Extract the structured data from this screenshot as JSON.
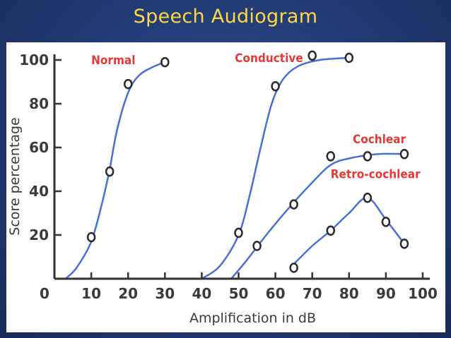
{
  "slide": {
    "title": "Speech Audiogram"
  },
  "chart_data": {
    "type": "line",
    "xlabel": "Amplification in dB",
    "ylabel": "Score percentage",
    "xlim": [
      0,
      100
    ],
    "ylim": [
      0,
      100
    ],
    "x_ticks": [
      0,
      10,
      20,
      30,
      40,
      50,
      60,
      70,
      80,
      90,
      100
    ],
    "y_ticks": [
      20,
      40,
      60,
      80,
      100
    ],
    "grid": false,
    "legend": "none",
    "line_color": "#4a6fd4",
    "point_color": "#2b2b2b",
    "label_color": "#e53935",
    "series": [
      {
        "name": "Normal",
        "points": [
          [
            10,
            19
          ],
          [
            15,
            49
          ],
          [
            20,
            89
          ],
          [
            30,
            99
          ]
        ],
        "curve": [
          [
            3,
            0
          ],
          [
            6,
            5
          ],
          [
            10,
            17
          ],
          [
            13,
            35
          ],
          [
            15,
            50
          ],
          [
            17,
            68
          ],
          [
            20,
            85
          ],
          [
            23,
            93
          ],
          [
            27,
            97
          ],
          [
            30,
            99
          ]
        ]
      },
      {
        "name": "Conductive",
        "points": [
          [
            50,
            21
          ],
          [
            60,
            88
          ],
          [
            70,
            102
          ],
          [
            80,
            101
          ]
        ],
        "curve": [
          [
            40,
            0
          ],
          [
            45,
            6
          ],
          [
            50,
            20
          ],
          [
            53,
            38
          ],
          [
            56,
            60
          ],
          [
            59,
            80
          ],
          [
            62,
            91
          ],
          [
            66,
            97
          ],
          [
            72,
            100
          ],
          [
            80,
            101
          ]
        ]
      },
      {
        "name": "Cochlear",
        "points": [
          [
            55,
            15
          ],
          [
            65,
            34
          ],
          [
            75,
            56
          ],
          [
            85,
            56
          ],
          [
            95,
            57
          ]
        ],
        "curve": [
          [
            48,
            0
          ],
          [
            52,
            8
          ],
          [
            58,
            21
          ],
          [
            64,
            33
          ],
          [
            70,
            44
          ],
          [
            75,
            52
          ],
          [
            80,
            55
          ],
          [
            88,
            57
          ],
          [
            95,
            57
          ]
        ]
      },
      {
        "name": "Retro-cochlear",
        "points": [
          [
            65,
            5
          ],
          [
            75,
            22
          ],
          [
            85,
            37
          ],
          [
            90,
            26
          ],
          [
            95,
            16
          ]
        ],
        "curve": [
          [
            64,
            5
          ],
          [
            70,
            15
          ],
          [
            75,
            22
          ],
          [
            80,
            30
          ],
          [
            85,
            37
          ],
          [
            90,
            27
          ],
          [
            95,
            16
          ]
        ]
      }
    ],
    "annotations": [
      {
        "text": "Normal",
        "x": 10,
        "y": 98
      },
      {
        "text": "Conductive",
        "x": 49,
        "y": 99
      },
      {
        "text": "Cochlear",
        "x": 81,
        "y": 62
      },
      {
        "text": "Retro-cochlear",
        "x": 75,
        "y": 46
      }
    ]
  }
}
